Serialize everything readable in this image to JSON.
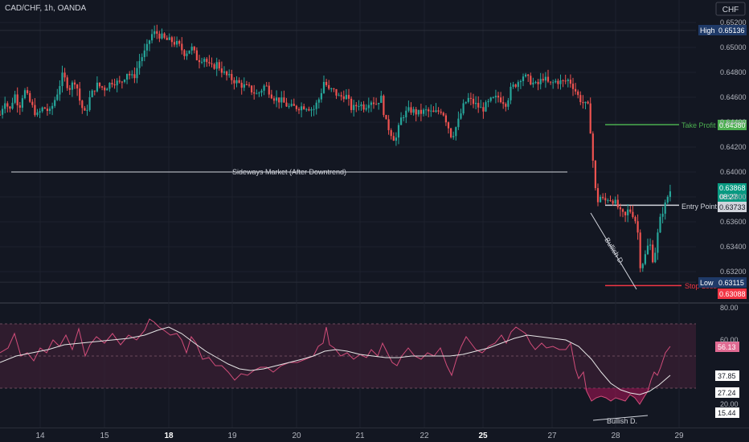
{
  "header": {
    "symbol_label": "CAD/CHF, 1h, OANDA",
    "currency": "CHF"
  },
  "colors": {
    "background": "#131722",
    "grid": "#1e222d",
    "up": "#26a69a",
    "down": "#ef5350",
    "axis_text": "#b2b5be",
    "take_profit": "#4caf50",
    "stop_loss": "#f23645",
    "high_low_tag": "#1f3a68",
    "rsi": "#d24d7a",
    "rsi_ma": "#e6e6e6",
    "rsi_band": "#3a1f33"
  },
  "annotations": {
    "sideways": "Sideways Market (After Downtrend)",
    "take_profit": "Take Profit",
    "entry": "Entry Point",
    "stop_loss": "Stop Loss",
    "bullish_price": "Bullish D.",
    "bullish_rsi": "Bullish D."
  },
  "price_tags": {
    "high_label": "High",
    "high_value": "0.65136",
    "take_profit_value": "0.64380",
    "current_value": "0.63868",
    "countdown": "08:27",
    "entry_value": "0.63733",
    "low_label": "Low",
    "low_value": "0.63115",
    "stop_value": "0.63088"
  },
  "rsi_tags": {
    "rsi_value": "56.13",
    "ma_value": "37.85",
    "level_a": "27.24",
    "level_b": "15.44"
  },
  "chart_data": [
    {
      "type": "candlestick",
      "title": "CAD/CHF, 1h, OANDA",
      "ylim": [
        0.6295,
        0.6526
      ],
      "y_ticks": [
        "0.65200",
        "0.65000",
        "0.64800",
        "0.64600",
        "0.64400",
        "0.64200",
        "0.64000",
        "0.63800",
        "0.63600",
        "0.63400",
        "0.63200"
      ],
      "x_ticks": [
        "14",
        "15",
        "18",
        "19",
        "20",
        "21",
        "22",
        "25",
        "27",
        "28",
        "29"
      ],
      "x_ticks_bold": [
        "18",
        "25"
      ],
      "levels": {
        "take_profit": 0.6438,
        "entry": 0.63733,
        "stop_loss": 0.63088,
        "high": 0.65136,
        "low": 0.63115,
        "sideways": 0.64
      },
      "close_path": [
        [
          0,
          0.6446
        ],
        [
          6,
          0.6458
        ],
        [
          12,
          0.6449
        ],
        [
          18,
          0.6463
        ],
        [
          24,
          0.6452
        ],
        [
          30,
          0.6466
        ],
        [
          38,
          0.6455
        ],
        [
          46,
          0.6445
        ],
        [
          54,
          0.6452
        ],
        [
          62,
          0.6448
        ],
        [
          70,
          0.6461
        ],
        [
          78,
          0.6478
        ],
        [
          86,
          0.6467
        ],
        [
          94,
          0.6474
        ],
        [
          100,
          0.6455
        ],
        [
          106,
          0.6446
        ],
        [
          112,
          0.646
        ],
        [
          120,
          0.647
        ],
        [
          130,
          0.6467
        ],
        [
          140,
          0.6473
        ],
        [
          150,
          0.6471
        ],
        [
          158,
          0.648
        ],
        [
          166,
          0.6475
        ],
        [
          174,
          0.649
        ],
        [
          182,
          0.6498
        ],
        [
          188,
          0.651
        ],
        [
          194,
          0.6512
        ],
        [
          200,
          0.6509
        ],
        [
          206,
          0.6506
        ],
        [
          214,
          0.6505
        ],
        [
          222,
          0.6502
        ],
        [
          230,
          0.6495
        ],
        [
          238,
          0.65
        ],
        [
          246,
          0.649
        ],
        [
          254,
          0.6492
        ],
        [
          262,
          0.6483
        ],
        [
          270,
          0.6487
        ],
        [
          280,
          0.6478
        ],
        [
          290,
          0.6474
        ],
        [
          300,
          0.647
        ],
        [
          310,
          0.6467
        ],
        [
          320,
          0.6462
        ],
        [
          330,
          0.647
        ],
        [
          340,
          0.646
        ],
        [
          350,
          0.6457
        ],
        [
          360,
          0.6452
        ],
        [
          370,
          0.6452
        ],
        [
          380,
          0.6453
        ],
        [
          390,
          0.645
        ],
        [
          398,
          0.646
        ],
        [
          404,
          0.6475
        ],
        [
          408,
          0.6465
        ],
        [
          414,
          0.6466
        ],
        [
          422,
          0.646
        ],
        [
          430,
          0.6462
        ],
        [
          438,
          0.645
        ],
        [
          446,
          0.6455
        ],
        [
          454,
          0.6452
        ],
        [
          460,
          0.6458
        ],
        [
          468,
          0.6455
        ],
        [
          474,
          0.646
        ],
        [
          480,
          0.644
        ],
        [
          486,
          0.6432
        ],
        [
          492,
          0.6425
        ],
        [
          500,
          0.6445
        ],
        [
          510,
          0.645
        ],
        [
          520,
          0.6447
        ],
        [
          530,
          0.6449
        ],
        [
          540,
          0.6447
        ],
        [
          550,
          0.645
        ],
        [
          556,
          0.644
        ],
        [
          562,
          0.6428
        ],
        [
          570,
          0.644
        ],
        [
          576,
          0.6452
        ],
        [
          582,
          0.6459
        ],
        [
          590,
          0.6455
        ],
        [
          600,
          0.645
        ],
        [
          610,
          0.6457
        ],
        [
          620,
          0.646
        ],
        [
          630,
          0.6455
        ],
        [
          636,
          0.6467
        ],
        [
          644,
          0.6472
        ],
        [
          650,
          0.6478
        ],
        [
          656,
          0.6475
        ],
        [
          662,
          0.6472
        ],
        [
          668,
          0.6469
        ],
        [
          676,
          0.6476
        ],
        [
          684,
          0.647
        ],
        [
          692,
          0.6473
        ],
        [
          700,
          0.6472
        ],
        [
          708,
          0.6474
        ],
        [
          714,
          0.6468
        ],
        [
          720,
          0.646
        ],
        [
          726,
          0.6455
        ],
        [
          732,
          0.6452
        ],
        [
          736,
          0.6425
        ],
        [
          740,
          0.639
        ],
        [
          743,
          0.6375
        ],
        [
          746,
          0.6381
        ],
        [
          752,
          0.6376
        ],
        [
          756,
          0.6379
        ],
        [
          762,
          0.6378
        ],
        [
          768,
          0.6373
        ],
        [
          772,
          0.6367
        ],
        [
          778,
          0.6364
        ],
        [
          782,
          0.637
        ],
        [
          786,
          0.6368
        ],
        [
          790,
          0.6363
        ],
        [
          794,
          0.635
        ],
        [
          797,
          0.6323
        ],
        [
          800,
          0.6328
        ],
        [
          804,
          0.6335
        ],
        [
          808,
          0.6345
        ],
        [
          812,
          0.633
        ],
        [
          816,
          0.6338
        ],
        [
          820,
          0.6358
        ],
        [
          824,
          0.6368
        ],
        [
          828,
          0.6374
        ],
        [
          832,
          0.6383
        ],
        [
          836,
          0.6387
        ]
      ]
    },
    {
      "type": "line",
      "title": "RSI",
      "ylim": [
        10,
        85
      ],
      "y_ticks": [
        "80.00",
        "60.00",
        "20.00"
      ],
      "band": [
        30,
        70
      ],
      "series": [
        {
          "values": [
            [
              0,
              52
            ],
            [
              10,
              55
            ],
            [
              18,
              64
            ],
            [
              26,
              50
            ],
            [
              34,
              52
            ],
            [
              42,
              47
            ],
            [
              50,
              55
            ],
            [
              58,
              52
            ],
            [
              66,
              60
            ],
            [
              74,
              56
            ],
            [
              82,
              63
            ],
            [
              90,
              54
            ],
            [
              98,
              67
            ],
            [
              106,
              50
            ],
            [
              112,
              57
            ],
            [
              120,
              62
            ],
            [
              130,
              58
            ],
            [
              140,
              64
            ],
            [
              150,
              57
            ],
            [
              160,
              63
            ],
            [
              170,
              60
            ],
            [
              180,
              66
            ],
            [
              186,
              73
            ],
            [
              192,
              71
            ],
            [
              198,
              68
            ],
            [
              204,
              66
            ],
            [
              212,
              63
            ],
            [
              220,
              64
            ],
            [
              226,
              60
            ],
            [
              232,
              52
            ],
            [
              238,
              62
            ],
            [
              244,
              58
            ],
            [
              252,
              48
            ],
            [
              260,
              49
            ],
            [
              268,
              44
            ],
            [
              276,
              44
            ],
            [
              284,
              40
            ],
            [
              292,
              35
            ],
            [
              300,
              39
            ],
            [
              308,
              38
            ],
            [
              316,
              41
            ],
            [
              324,
              43
            ],
            [
              332,
              43
            ],
            [
              340,
              40
            ],
            [
              350,
              44
            ],
            [
              360,
              46
            ],
            [
              370,
              46
            ],
            [
              380,
              48
            ],
            [
              390,
              50
            ],
            [
              396,
              56
            ],
            [
              402,
              58
            ],
            [
              406,
              68
            ],
            [
              410,
              57
            ],
            [
              416,
              55
            ],
            [
              424,
              50
            ],
            [
              432,
              52
            ],
            [
              440,
              48
            ],
            [
              448,
              51
            ],
            [
              456,
              49
            ],
            [
              462,
              54
            ],
            [
              470,
              50
            ],
            [
              476,
              58
            ],
            [
              482,
              52
            ],
            [
              488,
              46
            ],
            [
              494,
              44
            ],
            [
              500,
              50
            ],
            [
              508,
              55
            ],
            [
              516,
              50
            ],
            [
              524,
              48
            ],
            [
              532,
              52
            ],
            [
              540,
              50
            ],
            [
              548,
              55
            ],
            [
              556,
              44
            ],
            [
              562,
              38
            ],
            [
              568,
              48
            ],
            [
              574,
              56
            ],
            [
              580,
              62
            ],
            [
              586,
              58
            ],
            [
              592,
              54
            ],
            [
              600,
              52
            ],
            [
              608,
              56
            ],
            [
              616,
              58
            ],
            [
              624,
              63
            ],
            [
              630,
              58
            ],
            [
              636,
              65
            ],
            [
              642,
              68
            ],
            [
              648,
              66
            ],
            [
              654,
              64
            ],
            [
              660,
              58
            ],
            [
              666,
              54
            ],
            [
              674,
              58
            ],
            [
              680,
              55
            ],
            [
              688,
              56
            ],
            [
              696,
              54
            ],
            [
              704,
              54
            ],
            [
              710,
              58
            ],
            [
              716,
              42
            ],
            [
              720,
              36
            ],
            [
              726,
              40
            ],
            [
              730,
              28
            ],
            [
              736,
              22
            ],
            [
              742,
              24
            ],
            [
              748,
              25
            ],
            [
              754,
              24
            ],
            [
              760,
              22
            ],
            [
              766,
              24
            ],
            [
              772,
              23
            ],
            [
              778,
              22
            ],
            [
              784,
              26
            ],
            [
              790,
              24
            ],
            [
              796,
              20
            ],
            [
              802,
              25
            ],
            [
              806,
              28
            ],
            [
              810,
              35
            ],
            [
              814,
              40
            ],
            [
              818,
              38
            ],
            [
              822,
              43
            ],
            [
              828,
              52
            ],
            [
              834,
              56
            ]
          ]
        },
        {
          "values": [
            [
              0,
              46
            ],
            [
              20,
              50
            ],
            [
              40,
              52
            ],
            [
              60,
              54
            ],
            [
              80,
              57
            ],
            [
              100,
              58
            ],
            [
              120,
              59
            ],
            [
              140,
              60
            ],
            [
              160,
              61
            ],
            [
              180,
              63
            ],
            [
              196,
              66
            ],
            [
              210,
              68
            ],
            [
              226,
              64
            ],
            [
              242,
              58
            ],
            [
              256,
              53
            ],
            [
              270,
              49
            ],
            [
              284,
              45
            ],
            [
              298,
              42
            ],
            [
              312,
              41
            ],
            [
              328,
              42
            ],
            [
              344,
              44
            ],
            [
              360,
              46
            ],
            [
              376,
              48
            ],
            [
              390,
              50
            ],
            [
              404,
              53
            ],
            [
              418,
              54
            ],
            [
              432,
              53
            ],
            [
              448,
              51
            ],
            [
              464,
              50
            ],
            [
              480,
              49
            ],
            [
              496,
              49
            ],
            [
              512,
              50
            ],
            [
              528,
              50
            ],
            [
              544,
              50
            ],
            [
              560,
              50
            ],
            [
              576,
              51
            ],
            [
              592,
              53
            ],
            [
              608,
              55
            ],
            [
              624,
              58
            ],
            [
              640,
              61
            ],
            [
              656,
              63
            ],
            [
              672,
              62
            ],
            [
              688,
              61
            ],
            [
              704,
              60
            ],
            [
              720,
              56
            ],
            [
              736,
              48
            ],
            [
              748,
              40
            ],
            [
              760,
              33
            ],
            [
              772,
              29
            ],
            [
              784,
              27
            ],
            [
              796,
              26
            ],
            [
              808,
              28
            ],
            [
              820,
              32
            ],
            [
              834,
              38
            ]
          ]
        }
      ]
    }
  ]
}
